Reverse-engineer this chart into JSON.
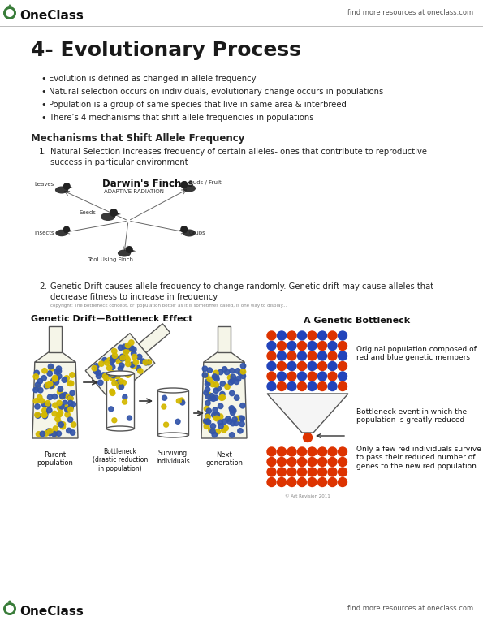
{
  "bg_color": "#ffffff",
  "header_right_text": "find more resources at oneclass.com",
  "footer_right_text": "find more resources at oneclass.com",
  "title": "4- Evolutionary Process",
  "bullet_points": [
    "Evolution is defined as changed in allele frequency",
    "Natural selection occurs on individuals, evolutionary change occurs in populations",
    "Population is a group of same species that live in same area & interbreed",
    "There’s 4 mechanisms that shift allele frequencies in populations"
  ],
  "section_heading": "Mechanisms that Shift Allele Frequency",
  "item1_line1": "Natural Selection increases frequency of certain alleles- ones that contribute to reproductive",
  "item1_line2": "success in particular environment",
  "item2_line1": "Genetic Drift causes allele frequency to change randomly. Genetic drift may cause alleles that",
  "item2_line2": "decrease fitness to increase in frequency",
  "item2_caption": "copyright: The bottleneck concept, or 'population bottle' as it is sometimes called, is one way to display...",
  "gd_title": "Genetic Drift—Bottleneck Effect",
  "bottleneck_title": "A Genetic Bottleneck",
  "bottleneck_text1": "Original population composed of\nred and blue genetic members",
  "bottleneck_text2": "Bottleneck event in which the\npopulation is greatly reduced",
  "bottleneck_text3": "Only a few red individuals survive\nto pass their reduced number of\ngenes to the new red population",
  "copyright_text": "© Art Revision 2011",
  "label_parent": "Parent\npopulation",
  "label_bottleneck": "Bottleneck\n(drastic reduction\nin population)",
  "label_surviving": "Surviving\nindividuals",
  "label_next": "Next\ngeneration",
  "oneclass_green": "#3a7d3a",
  "title_color": "#1a1a1a",
  "text_color": "#222222",
  "header_line_color": "#bbbbbb",
  "dot_yellow": "#d4b800",
  "dot_blue": "#3355aa",
  "dot_red": "#dd3300",
  "dot_blue2": "#2244bb"
}
